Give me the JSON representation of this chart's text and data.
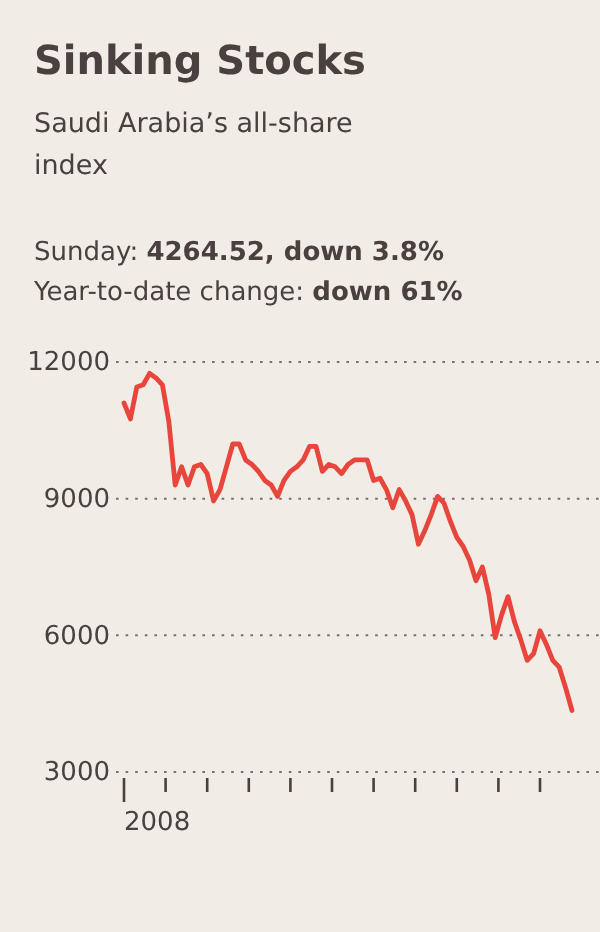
{
  "chart_data": {
    "type": "line",
    "title": "Sinking Stocks",
    "subtitle": "Saudi Arabia’s all-share index",
    "annotations": [
      "Sunday: 4264.52, down 3.8%",
      "Year-to-date change: down 61%",
      "2008"
    ],
    "categories": [
      null,
      null,
      null,
      null,
      null,
      null,
      null,
      null,
      null,
      null,
      null,
      null,
      null,
      null,
      null,
      null,
      null,
      null,
      null,
      null,
      null,
      null,
      null,
      null,
      null,
      null,
      null,
      null,
      null,
      null,
      null,
      null,
      null,
      null,
      null,
      null,
      null,
      null,
      null,
      null,
      null,
      null,
      null,
      null,
      null,
      null,
      null,
      null,
      null,
      null,
      null,
      null,
      null,
      null,
      null,
      null,
      null,
      null,
      null,
      null,
      null,
      null,
      null,
      null,
      null,
      null,
      null,
      null,
      null,
      null,
      null
    ],
    "series": [
      {
        "color": "#e8463c",
        "values": [
          11100,
          10750,
          11450,
          11500,
          11750,
          11650,
          11500,
          10700,
          9300,
          9700,
          9300,
          9700,
          9750,
          9550,
          8950,
          9200,
          9700,
          10200,
          10200,
          9850,
          9750,
          9600,
          9400,
          9300,
          9050,
          9400,
          9600,
          9700,
          9850,
          10150,
          10150,
          9600,
          9750,
          9700,
          9550,
          9750,
          9850,
          9850,
          9850,
          9400,
          9450,
          9200,
          8800,
          9200,
          8950,
          8650,
          8000,
          8300,
          8650,
          9050,
          8900,
          8500,
          8150,
          7950,
          7650,
          7200,
          7500,
          6900,
          5950,
          6450,
          6850,
          6300,
          5900,
          5450,
          5600,
          6100,
          5800,
          5450,
          5300,
          4850,
          4350
        ]
      }
    ],
    "ylim": [
      3000,
      12000
    ],
    "yticks": [
      3000,
      6000,
      9000,
      12000
    ],
    "grid": "y",
    "line_style": "solid"
  }
}
